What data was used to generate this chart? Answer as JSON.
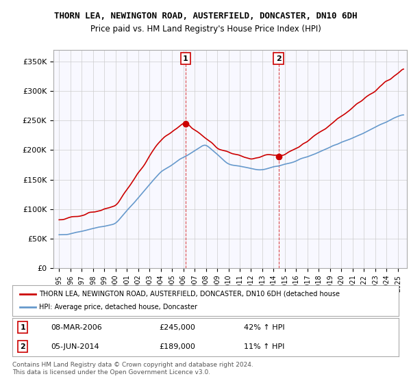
{
  "title": "THORN LEA, NEWINGTON ROAD, AUSTERFIELD, DONCASTER, DN10 6DH",
  "subtitle": "Price paid vs. HM Land Registry's House Price Index (HPI)",
  "ylim": [
    0,
    370000
  ],
  "yticks": [
    0,
    50000,
    100000,
    150000,
    200000,
    250000,
    300000,
    350000
  ],
  "ytick_labels": [
    "£0",
    "£50K",
    "£100K",
    "£150K",
    "£200K",
    "£250K",
    "£300K",
    "£350K"
  ],
  "sale1": {
    "date_num": 2006.19,
    "price": 245000,
    "label": "1",
    "date_str": "08-MAR-2006",
    "pct": "42%"
  },
  "sale2": {
    "date_num": 2014.43,
    "price": 189000,
    "label": "2",
    "date_str": "05-JUN-2014",
    "pct": "11%"
  },
  "legend_line1": "THORN LEA, NEWINGTON ROAD, AUSTERFIELD, DONCASTER, DN10 6DH (detached house",
  "legend_line2": "HPI: Average price, detached house, Doncaster",
  "footnote": "Contains HM Land Registry data © Crown copyright and database right 2024.\nThis data is licensed under the Open Government Licence v3.0.",
  "red_color": "#cc0000",
  "blue_color": "#6699cc",
  "bg_color": "#ffffff",
  "grid_color": "#cccccc"
}
